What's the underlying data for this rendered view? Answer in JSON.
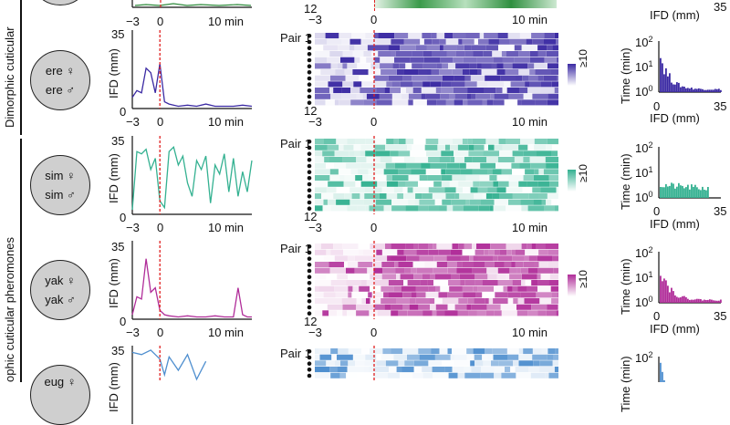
{
  "figure": {
    "group_labels": {
      "dimorphic": "Dimorphic cuticular",
      "monomorphic": "ophic cuticular pheromones"
    },
    "pair_label": "Pair 1",
    "pair_last": "12",
    "heat_x_ticks": [
      "−3",
      "0",
      "10 min"
    ],
    "trace_x_ticks": [
      "−3",
      "0",
      "10 min"
    ],
    "trace_ylabel": "IFD (mm)",
    "hist_ylabel": "Time (min)",
    "hist_xlabel": "IFD (mm)",
    "hist_xticks": [
      "0",
      "35"
    ],
    "hist_yticks": [
      "10",
      "10",
      "10"
    ],
    "hist_yexps": [
      "2",
      "1",
      "0"
    ],
    "scale_top_base": "≥10",
    "scale_bottom": "0",
    "top_partial": {
      "pair_last": "12",
      "heat_ticks": [
        "−3",
        "0",
        "10 min"
      ],
      "trace_ticks": [
        "−3",
        "0",
        "10 min"
      ],
      "hist_xtick_right": "35",
      "hist_xlabel": "IFD (mm)"
    }
  },
  "rows": [
    {
      "species_f": "ere ♀",
      "species_m": "ere ♂",
      "color": "#3b2aa3",
      "trace_yticks": [
        "35",
        "0"
      ],
      "chart_data": {
        "type": "line",
        "x": [
          -3,
          -2.5,
          -2,
          -1.5,
          -1,
          -0.5,
          0,
          0.5,
          1,
          2,
          3,
          4,
          5,
          6,
          7,
          8,
          9,
          10
        ],
        "y": [
          5,
          8,
          7,
          18,
          16,
          7,
          20,
          3,
          2,
          1,
          1.5,
          1,
          2,
          1,
          1,
          1,
          1.5,
          1
        ],
        "xlim": [
          -3,
          10
        ],
        "ylim": [
          0,
          35
        ]
      }
    },
    {
      "species_f": "sim ♀",
      "species_m": "sim ♂",
      "color": "#34b191",
      "trace_yticks": [
        "35",
        "0"
      ],
      "chart_data": {
        "type": "line",
        "x": [
          -3,
          -2.5,
          -2,
          -1.5,
          -1,
          -0.5,
          0,
          0.5,
          1,
          1.5,
          2,
          2.5,
          3,
          3.5,
          4,
          4.5,
          5,
          5.5,
          6,
          6.5,
          7,
          7.5,
          8,
          8.5,
          9,
          9.5,
          10
        ],
        "y": [
          2,
          28,
          27,
          29,
          20,
          25,
          6,
          3,
          28,
          30,
          22,
          26,
          14,
          8,
          24,
          20,
          26,
          5,
          22,
          18,
          27,
          10,
          25,
          8,
          19,
          10,
          24
        ],
        "xlim": [
          -3,
          10
        ],
        "ylim": [
          0,
          35
        ]
      }
    },
    {
      "species_f": "yak ♀",
      "species_m": "yak ♂",
      "color": "#b02d99",
      "trace_yticks": [
        "35",
        "0"
      ],
      "chart_data": {
        "type": "line",
        "x": [
          -3,
          -2.5,
          -2,
          -1.5,
          -1,
          -0.5,
          0,
          0.5,
          1,
          2,
          3,
          4,
          5,
          6,
          7,
          8,
          8.5,
          9,
          9.5,
          10
        ],
        "y": [
          2,
          10,
          9,
          27,
          12,
          14,
          4,
          2,
          1.5,
          1,
          1.5,
          1,
          1,
          1.5,
          1,
          1,
          14,
          2,
          1,
          1
        ],
        "xlim": [
          -3,
          10
        ],
        "ylim": [
          0,
          35
        ]
      }
    },
    {
      "species_f": "eug ♀",
      "species_m": "",
      "color": "#4f8fcf",
      "trace_yticks": [
        "35"
      ],
      "chart_data": {
        "type": "line",
        "x": [
          -3,
          -2,
          -1,
          0,
          0.5,
          1,
          2,
          3,
          4,
          5
        ],
        "y": [
          32,
          31,
          33,
          29,
          22,
          30,
          24,
          31,
          20,
          28
        ],
        "xlim": [
          -3,
          10
        ],
        "ylim": [
          0,
          35
        ]
      }
    }
  ]
}
